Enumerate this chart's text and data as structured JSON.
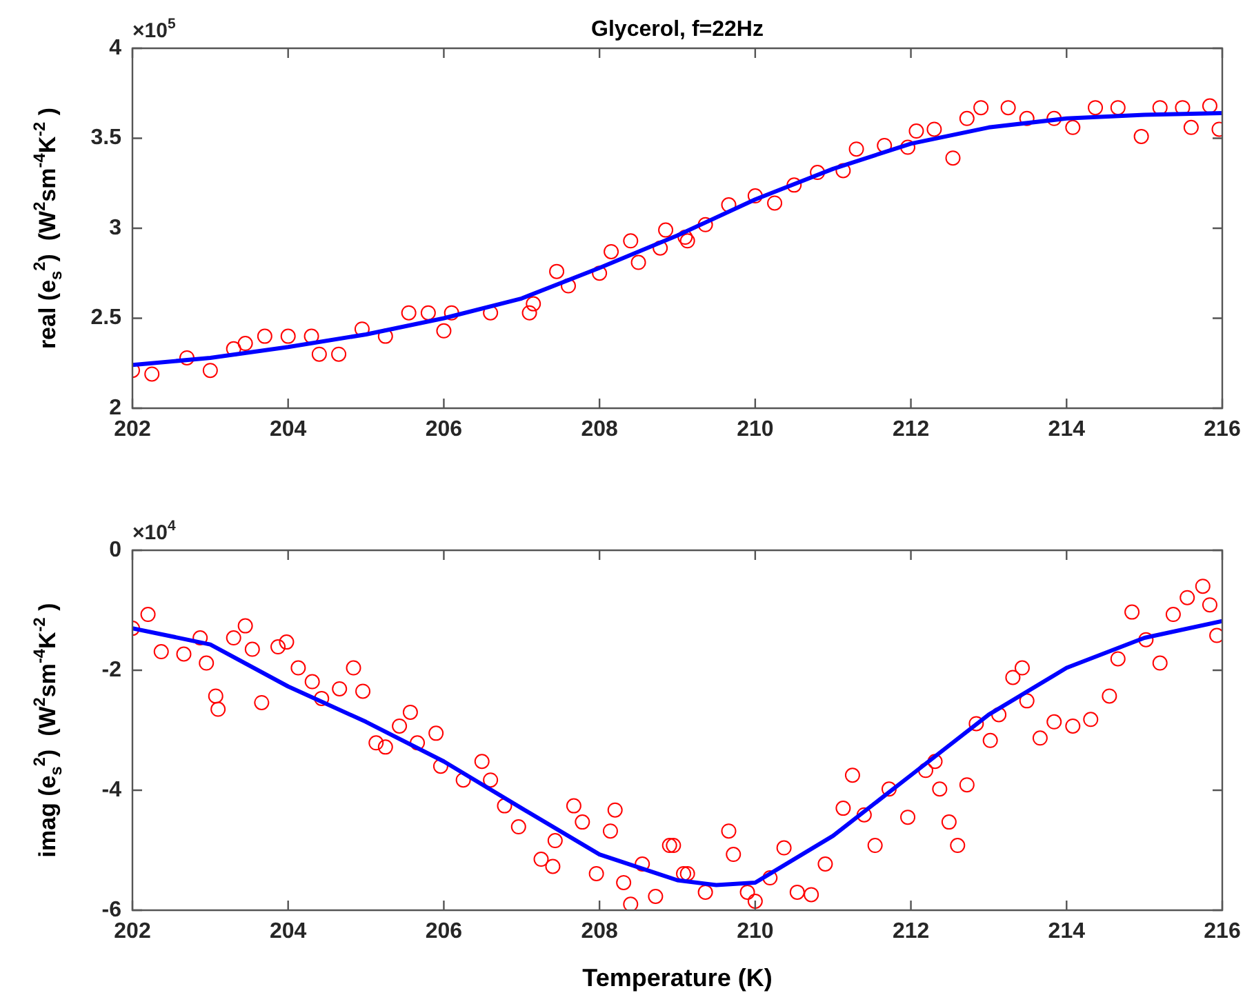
{
  "chart_data": [
    {
      "type": "scatter",
      "title": "Glycerol, f=22Hz",
      "ylabel": "real (e$_{s}$$^{2}$)  (W$^{2}$sm$^{-4}$K$^{-2}$ )",
      "annotations": [
        "×10$^{5}$"
      ],
      "xlim": [
        202,
        216
      ],
      "xticks": [
        202,
        204,
        206,
        208,
        210,
        212,
        214,
        216
      ],
      "ylim": [
        2,
        4
      ],
      "yticks": [
        2,
        2.5,
        3,
        3.5,
        4
      ],
      "grid": false,
      "series": [
        {
          "type": "scatter",
          "marker": "circle",
          "color": "#ff0000",
          "x": [
            202.0,
            202.25,
            202.7,
            203.0,
            203.3,
            203.45,
            203.7,
            204.0,
            204.3,
            204.4,
            204.65,
            204.95,
            205.25,
            205.55,
            205.8,
            206.0,
            206.1,
            206.6,
            207.1,
            207.15,
            207.45,
            207.6,
            208.0,
            208.15,
            208.4,
            208.5,
            208.78,
            208.85,
            209.1,
            209.13,
            209.36,
            209.66,
            210.0,
            210.25,
            210.5,
            210.8,
            211.13,
            211.3,
            211.66,
            211.96,
            212.07,
            212.3,
            212.54,
            212.72,
            212.9,
            213.25,
            213.49,
            213.84,
            214.08,
            214.37,
            214.66,
            214.96,
            215.2,
            215.49,
            215.6,
            215.84,
            215.96
          ],
          "values": [
            2.21,
            2.19,
            2.28,
            2.21,
            2.33,
            2.36,
            2.4,
            2.4,
            2.4,
            2.3,
            2.3,
            2.44,
            2.4,
            2.53,
            2.53,
            2.43,
            2.53,
            2.53,
            2.53,
            2.58,
            2.76,
            2.68,
            2.75,
            2.87,
            2.93,
            2.81,
            2.89,
            2.99,
            2.95,
            2.93,
            3.02,
            3.13,
            3.18,
            3.14,
            3.24,
            3.31,
            3.32,
            3.44,
            3.46,
            3.45,
            3.54,
            3.55,
            3.39,
            3.61,
            3.67,
            3.67,
            3.61,
            3.61,
            3.56,
            3.67,
            3.67,
            3.51,
            3.67,
            3.67,
            3.56,
            3.68,
            3.55
          ]
        },
        {
          "type": "line",
          "marker": "none",
          "color": "#0000ff",
          "x": [
            202,
            203,
            204,
            205,
            206,
            207,
            208,
            209,
            210,
            211,
            212,
            213,
            214,
            215,
            216
          ],
          "values": [
            2.24,
            2.28,
            2.34,
            2.41,
            2.5,
            2.61,
            2.78,
            2.96,
            3.16,
            3.33,
            3.47,
            3.56,
            3.61,
            3.63,
            3.64
          ]
        }
      ]
    },
    {
      "type": "scatter",
      "xlabel": "Temperature (K)",
      "ylabel": "imag (e$_{s}$$^{2}$)  (W$^{2}$sm$^{-4}$K$^{-2}$ )",
      "annotations": [
        "×10$^{4}$"
      ],
      "xlim": [
        202,
        216
      ],
      "xticks": [
        202,
        204,
        206,
        208,
        210,
        212,
        214,
        216
      ],
      "ylim": [
        -6,
        0
      ],
      "yticks": [
        -6,
        -4,
        -2,
        0
      ],
      "grid": false,
      "series": [
        {
          "type": "scatter",
          "marker": "circle",
          "color": "#ff0000",
          "x": [
            202.0,
            202.2,
            202.37,
            202.66,
            202.87,
            202.95,
            203.07,
            203.1,
            203.3,
            203.45,
            203.54,
            203.66,
            203.87,
            203.98,
            204.13,
            204.31,
            204.43,
            204.66,
            204.84,
            204.96,
            205.13,
            205.25,
            205.43,
            205.57,
            205.66,
            205.9,
            205.96,
            206.25,
            206.49,
            206.6,
            206.78,
            206.96,
            207.25,
            207.4,
            207.43,
            207.67,
            207.78,
            207.96,
            208.14,
            208.2,
            208.31,
            208.4,
            208.55,
            208.72,
            208.9,
            208.95,
            209.08,
            209.13,
            209.36,
            209.66,
            209.72,
            209.9,
            210.0,
            210.19,
            210.37,
            210.54,
            210.72,
            210.9,
            211.13,
            211.25,
            211.4,
            211.54,
            211.72,
            211.96,
            212.19,
            212.31,
            212.37,
            212.49,
            212.6,
            212.72,
            212.84,
            213.02,
            213.13,
            213.31,
            213.43,
            213.49,
            213.66,
            213.84,
            214.08,
            214.31,
            214.55,
            214.66,
            214.84,
            215.02,
            215.2,
            215.37,
            215.55,
            215.75,
            215.84,
            215.93
          ],
          "values": [
            -1.3,
            -1.07,
            -1.69,
            -1.73,
            -1.46,
            -1.88,
            -2.43,
            -2.65,
            -1.46,
            -1.26,
            -1.65,
            -2.54,
            -1.61,
            -1.53,
            -1.96,
            -2.19,
            -2.47,
            -2.31,
            -1.96,
            -2.35,
            -3.21,
            -3.28,
            -2.93,
            -2.7,
            -3.21,
            -3.05,
            -3.6,
            -3.83,
            -3.52,
            -3.83,
            -4.26,
            -4.61,
            -5.15,
            -5.27,
            -4.84,
            -4.26,
            -4.53,
            -5.39,
            -4.68,
            -4.33,
            -5.54,
            -5.9,
            -5.23,
            -5.77,
            -4.92,
            -4.92,
            -5.39,
            -5.39,
            -5.7,
            -4.68,
            -5.07,
            -5.7,
            -5.85,
            -5.46,
            -4.96,
            -5.7,
            -5.74,
            -5.23,
            -4.3,
            -3.75,
            -4.41,
            -4.92,
            -3.98,
            -4.45,
            -3.67,
            -3.52,
            -3.98,
            -4.53,
            -4.92,
            -3.91,
            -2.89,
            -3.17,
            -2.74,
            -2.12,
            -1.96,
            -2.51,
            -3.13,
            -2.86,
            -2.93,
            -2.82,
            -2.43,
            -1.81,
            -1.03,
            -1.49,
            -1.88,
            -1.07,
            -0.79,
            -0.6,
            -0.91,
            -1.42
          ]
        },
        {
          "type": "line",
          "marker": "none",
          "color": "#0000ff",
          "x": [
            202,
            203,
            204,
            205,
            206,
            207,
            208,
            209,
            209.5,
            210,
            211,
            212,
            213,
            214,
            215,
            216
          ],
          "values": [
            -1.3,
            -1.57,
            -2.27,
            -2.86,
            -3.52,
            -4.3,
            -5.07,
            -5.5,
            -5.58,
            -5.54,
            -4.76,
            -3.75,
            -2.74,
            -1.96,
            -1.46,
            -1.18
          ]
        }
      ]
    }
  ]
}
